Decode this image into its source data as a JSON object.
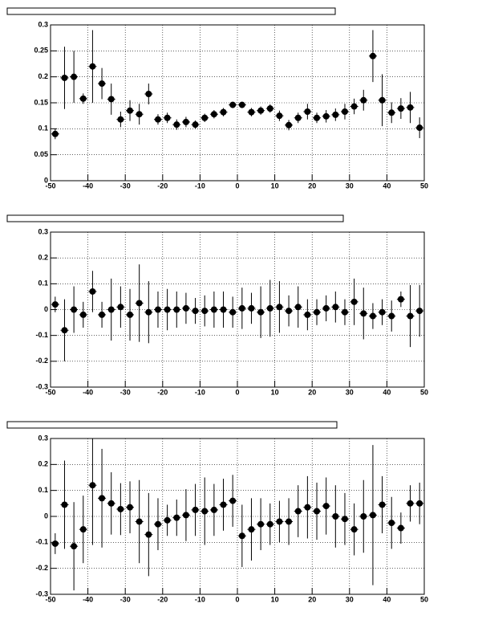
{
  "chart_data": [
    {
      "type": "scatter",
      "x": [
        -48.75,
        -46.25,
        -43.75,
        -41.25,
        -38.75,
        -36.25,
        -33.75,
        -31.25,
        -28.75,
        -26.25,
        -23.75,
        -21.25,
        -18.75,
        -16.25,
        -13.75,
        -11.25,
        -8.75,
        -6.25,
        -3.75,
        -1.25,
        1.25,
        3.75,
        6.25,
        8.75,
        11.25,
        13.75,
        16.25,
        18.75,
        21.25,
        23.75,
        26.25,
        28.75,
        31.25,
        33.75,
        36.25,
        38.75,
        41.25,
        43.75,
        46.25,
        48.75
      ],
      "series": [
        {
          "color": "#000000",
          "values": [
            0.09,
            0.198,
            0.2,
            0.158,
            0.22,
            0.187,
            0.157,
            0.118,
            0.135,
            0.128,
            0.167,
            0.118,
            0.121,
            0.108,
            0.113,
            0.108,
            0.121,
            0.128,
            0.132,
            0.146,
            0.146,
            0.132,
            0.135,
            0.139,
            0.125,
            0.107,
            0.121,
            0.133,
            0.121,
            0.124,
            0.127,
            0.133,
            0.143,
            0.155,
            0.24,
            0.155,
            0.131,
            0.139,
            0.141,
            0.102
          ],
          "errors": [
            0.01,
            0.06,
            0.05,
            0.01,
            0.07,
            0.03,
            0.03,
            0.015,
            0.02,
            0.02,
            0.02,
            0.01,
            0.01,
            0.01,
            0.01,
            0.008,
            0.008,
            0.008,
            0.008,
            0.006,
            0.006,
            0.008,
            0.008,
            0.008,
            0.01,
            0.01,
            0.01,
            0.015,
            0.01,
            0.012,
            0.012,
            0.015,
            0.015,
            0.02,
            0.05,
            0.05,
            0.02,
            0.02,
            0.03,
            0.02
          ]
        }
      ],
      "xlim": [
        -50,
        50
      ],
      "xticks": [
        -50,
        -40,
        -30,
        -20,
        -10,
        0,
        10,
        20,
        30,
        40,
        50
      ],
      "ylim": [
        0,
        0.3
      ],
      "yticks": [
        0,
        0.05,
        0.1,
        0.15,
        0.2,
        0.25,
        0.3
      ],
      "grid": true
    },
    {
      "type": "scatter",
      "x": [
        -48.75,
        -46.25,
        -43.75,
        -41.25,
        -38.75,
        -36.25,
        -33.75,
        -31.25,
        -28.75,
        -26.25,
        -23.75,
        -21.25,
        -18.75,
        -16.25,
        -13.75,
        -11.25,
        -8.75,
        -6.25,
        -3.75,
        -1.25,
        1.25,
        3.75,
        6.25,
        8.75,
        11.25,
        13.75,
        16.25,
        18.75,
        21.25,
        23.75,
        26.25,
        28.75,
        31.25,
        33.75,
        36.25,
        38.75,
        41.25,
        43.75,
        46.25,
        48.75
      ],
      "series": [
        {
          "color": "#000000",
          "values": [
            0.02,
            -0.08,
            0,
            -0.02,
            0.07,
            -0.02,
            0,
            0.01,
            -0.02,
            0.025,
            -0.01,
            0,
            0,
            0,
            0.005,
            -0.005,
            -0.005,
            0,
            0,
            -0.01,
            0.005,
            0.005,
            -0.01,
            0.005,
            0.01,
            -0.005,
            0.01,
            -0.02,
            -0.01,
            0.005,
            0.01,
            -0.01,
            0.03,
            -0.015,
            -0.025,
            -0.01,
            -0.025,
            0.04,
            -0.025,
            -0.005
          ],
          "errors": [
            0.03,
            0.12,
            0.09,
            0.05,
            0.08,
            0.05,
            0.12,
            0.08,
            0.1,
            0.15,
            0.12,
            0.07,
            0.08,
            0.07,
            0.06,
            0.05,
            0.06,
            0.07,
            0.07,
            0.06,
            0.08,
            0.06,
            0.1,
            0.11,
            0.1,
            0.06,
            0.08,
            0.06,
            0.05,
            0.05,
            0.06,
            0.05,
            0.09,
            0.1,
            0.05,
            0.05,
            0.06,
            0.03,
            0.12,
            0.1
          ]
        }
      ],
      "xlim": [
        -50,
        50
      ],
      "xticks": [
        -50,
        -40,
        -30,
        -20,
        -10,
        0,
        10,
        20,
        30,
        40,
        50
      ],
      "ylim": [
        -0.3,
        0.3
      ],
      "yticks": [
        -0.3,
        -0.2,
        -0.1,
        0,
        0.1,
        0.2,
        0.3
      ],
      "grid": true
    },
    {
      "type": "scatter",
      "x": [
        -48.75,
        -46.25,
        -43.75,
        -41.25,
        -38.75,
        -36.25,
        -33.75,
        -31.25,
        -28.75,
        -26.25,
        -23.75,
        -21.25,
        -18.75,
        -16.25,
        -13.75,
        -11.25,
        -8.75,
        -6.25,
        -3.75,
        -1.25,
        1.25,
        3.75,
        6.25,
        8.75,
        11.25,
        13.75,
        16.25,
        18.75,
        21.25,
        23.75,
        26.25,
        28.75,
        31.25,
        33.75,
        36.25,
        38.75,
        41.25,
        43.75,
        46.25,
        48.75
      ],
      "series": [
        {
          "color": "#000000",
          "values": [
            -0.105,
            0.045,
            -0.115,
            -0.05,
            0.12,
            0.07,
            0.05,
            0.028,
            0.035,
            -0.02,
            -0.07,
            -0.03,
            -0.015,
            -0.005,
            0.005,
            0.025,
            0.02,
            0.025,
            0.045,
            0.06,
            -0.075,
            -0.05,
            -0.03,
            -0.03,
            -0.02,
            -0.02,
            0.02,
            0.035,
            0.02,
            0.04,
            0,
            -0.01,
            -0.05,
            0,
            0.005,
            0.045,
            -0.025,
            -0.045,
            0.05,
            0.05
          ],
          "errors": [
            0.04,
            0.17,
            0.17,
            0.13,
            0.23,
            0.19,
            0.12,
            0.1,
            0.1,
            0.16,
            0.16,
            0.1,
            0.06,
            0.07,
            0.1,
            0.1,
            0.13,
            0.1,
            0.1,
            0.1,
            0.12,
            0.12,
            0.1,
            0.08,
            0.08,
            0.09,
            0.1,
            0.12,
            0.11,
            0.11,
            0.12,
            0.1,
            0.1,
            0.14,
            0.27,
            0.11,
            0.1,
            0.06,
            0.07,
            0.08
          ]
        }
      ],
      "xlim": [
        -50,
        50
      ],
      "xticks": [
        -50,
        -40,
        -30,
        -20,
        -10,
        0,
        10,
        20,
        30,
        40,
        50
      ],
      "ylim": [
        -0.3,
        0.3
      ],
      "yticks": [
        -0.3,
        -0.2,
        -0.1,
        0,
        0.1,
        0.2,
        0.3
      ],
      "grid": true
    }
  ]
}
